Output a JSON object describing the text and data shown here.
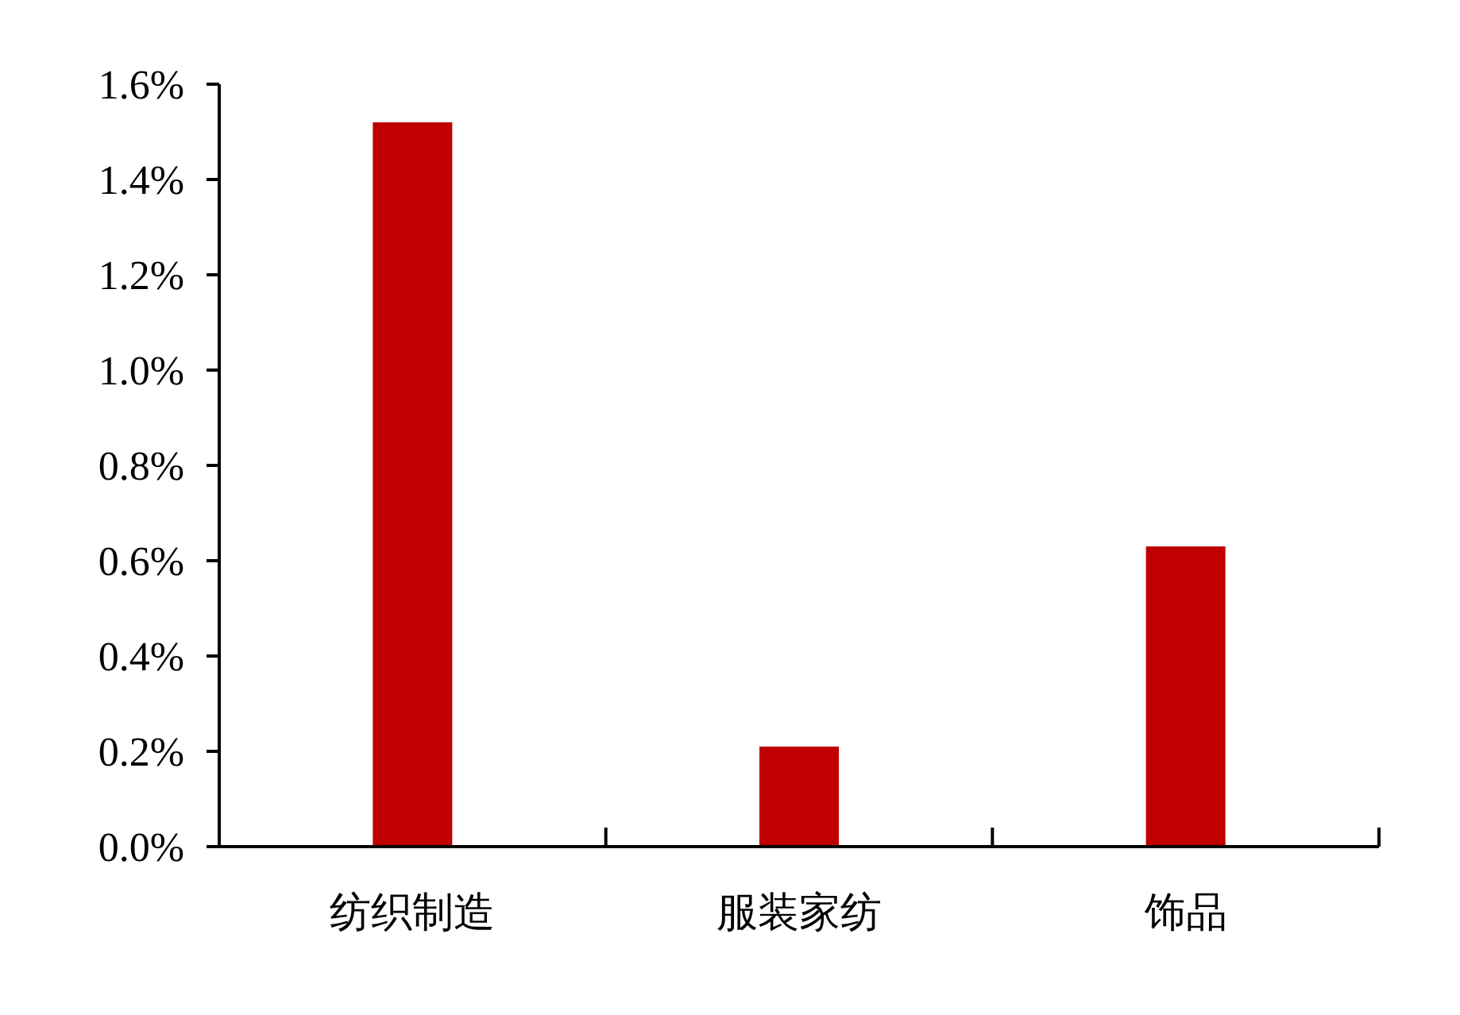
{
  "chart_data": {
    "type": "bar",
    "categories": [
      "纺织制造",
      "服装家纺",
      "饰品"
    ],
    "values": [
      1.52,
      0.21,
      0.63
    ],
    "color": "#c00000",
    "ylim": [
      0,
      1.6
    ],
    "yticks": [
      {
        "value": 0,
        "label": "0.0%"
      },
      {
        "value": 0.2,
        "label": "0.2%"
      },
      {
        "value": 0.4,
        "label": "0.4%"
      },
      {
        "value": 0.6,
        "label": "0.6%"
      },
      {
        "value": 0.8,
        "label": "0.8%"
      },
      {
        "value": 1.0,
        "label": "1.0%"
      },
      {
        "value": 1.2,
        "label": "1.2%"
      },
      {
        "value": 1.4,
        "label": "1.4%"
      },
      {
        "value": 1.6,
        "label": "1.6%"
      }
    ],
    "grid": false
  }
}
